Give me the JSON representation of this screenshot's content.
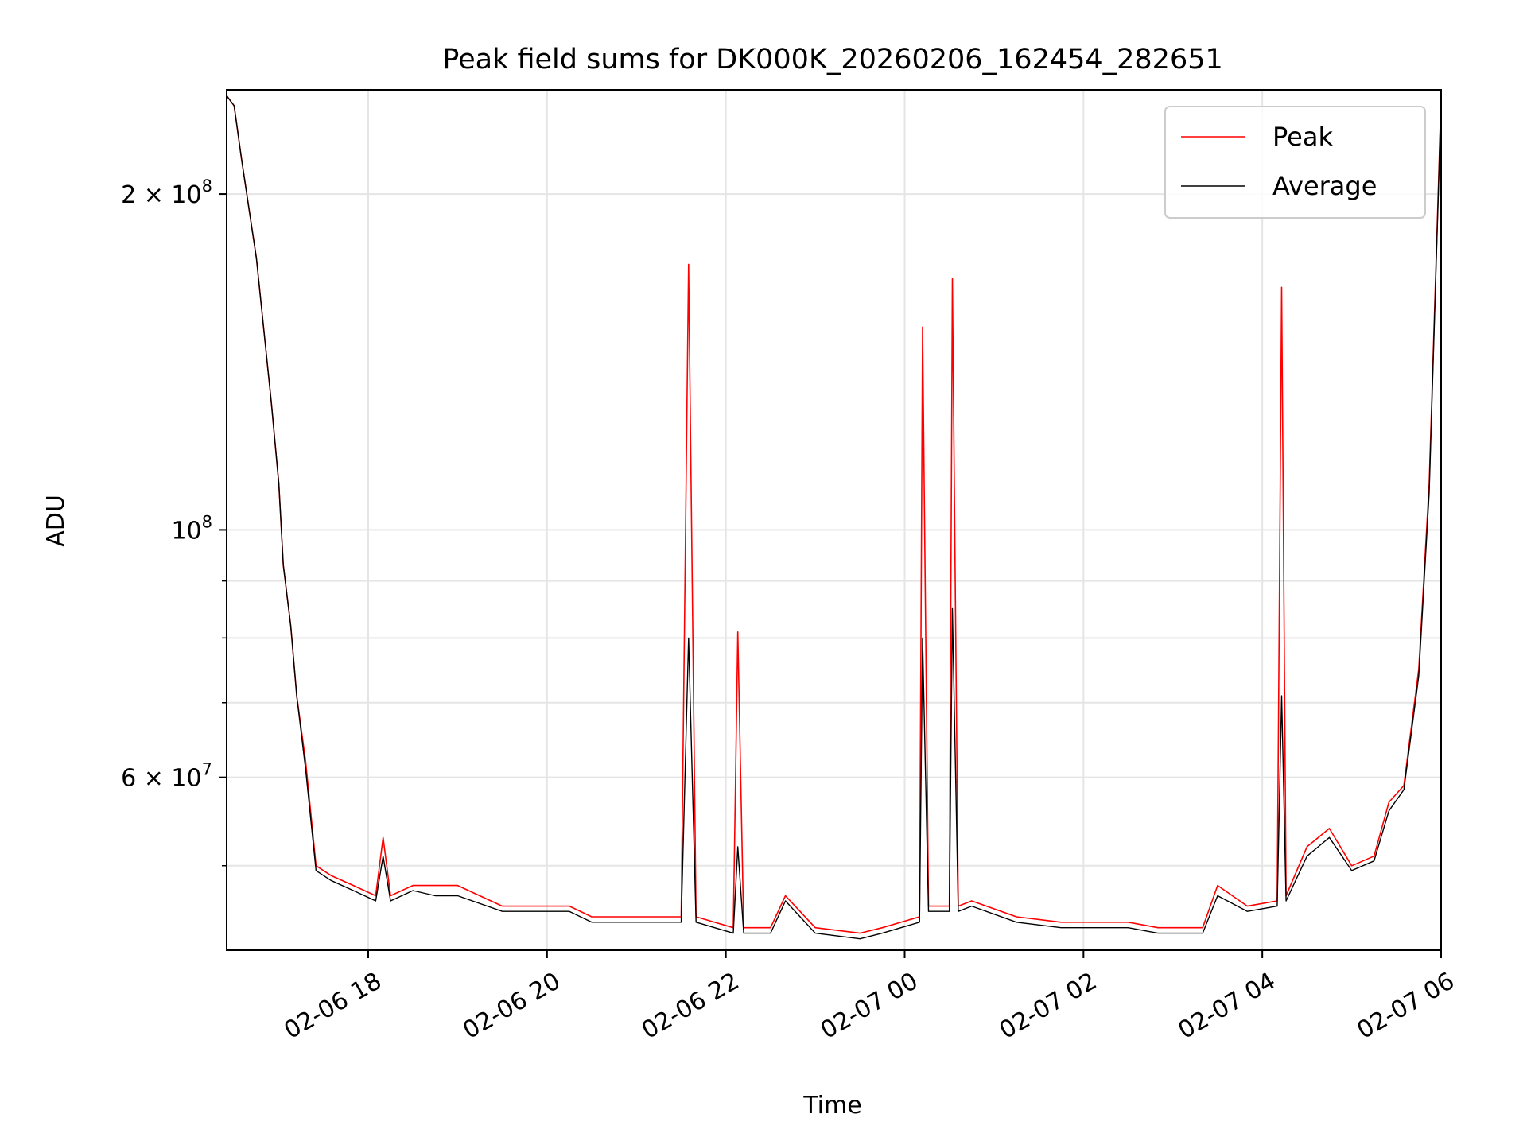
{
  "chart_data": {
    "type": "line",
    "title": "Peak field sums for DK000K_20260206_162454_282651",
    "xlabel": "Time",
    "ylabel": "ADU",
    "yscale": "log",
    "grid": true,
    "legend_position": "top-right",
    "xlim": [
      "2026-02-06 16:25",
      "2026-02-07 06:00"
    ],
    "ylim": [
      42000000,
      248000000
    ],
    "x_ticks": [
      {
        "t": "2026-02-06 18:00",
        "label": "02-06 18"
      },
      {
        "t": "2026-02-06 20:00",
        "label": "02-06 20"
      },
      {
        "t": "2026-02-06 22:00",
        "label": "02-06 22"
      },
      {
        "t": "2026-02-07 00:00",
        "label": "02-07 00"
      },
      {
        "t": "2026-02-07 02:00",
        "label": "02-07 02"
      },
      {
        "t": "2026-02-07 04:00",
        "label": "02-07 04"
      },
      {
        "t": "2026-02-07 06:00",
        "label": "02-07 06"
      }
    ],
    "y_major_ticks": [
      {
        "value": 60000000,
        "base": "6",
        "exp": "7"
      },
      {
        "value": 100000000,
        "base": "",
        "exp": "8"
      },
      {
        "value": 200000000,
        "base": "2",
        "exp": "8"
      }
    ],
    "y_minor_ticks": [
      50000000,
      70000000,
      80000000,
      90000000
    ],
    "series": [
      {
        "name": "Peak",
        "color": "#ff0000",
        "x": [
          "2026-02-06 16:25",
          "2026-02-06 16:30",
          "2026-02-06 16:35",
          "2026-02-06 16:45",
          "2026-02-06 16:55",
          "2026-02-06 17:00",
          "2026-02-06 17:03",
          "2026-02-06 17:08",
          "2026-02-06 17:12",
          "2026-02-06 17:18",
          "2026-02-06 17:25",
          "2026-02-06 17:35",
          "2026-02-06 17:50",
          "2026-02-06 18:05",
          "2026-02-06 18:10",
          "2026-02-06 18:15",
          "2026-02-06 18:30",
          "2026-02-06 18:45",
          "2026-02-06 19:00",
          "2026-02-06 19:30",
          "2026-02-06 19:50",
          "2026-02-06 20:15",
          "2026-02-06 20:30",
          "2026-02-06 21:00",
          "2026-02-06 21:30",
          "2026-02-06 21:35",
          "2026-02-06 21:40",
          "2026-02-06 22:05",
          "2026-02-06 22:08",
          "2026-02-06 22:12",
          "2026-02-06 22:30",
          "2026-02-06 22:40",
          "2026-02-06 23:00",
          "2026-02-06 23:30",
          "2026-02-06 23:45",
          "2026-02-07 00:10",
          "2026-02-07 00:12",
          "2026-02-07 00:16",
          "2026-02-07 00:30",
          "2026-02-07 00:32",
          "2026-02-07 00:36",
          "2026-02-07 00:45",
          "2026-02-07 01:15",
          "2026-02-07 01:45",
          "2026-02-07 02:30",
          "2026-02-07 02:50",
          "2026-02-07 03:20",
          "2026-02-07 03:30",
          "2026-02-07 03:50",
          "2026-02-07 04:10",
          "2026-02-07 04:13",
          "2026-02-07 04:16",
          "2026-02-07 04:30",
          "2026-02-07 04:45",
          "2026-02-07 05:00",
          "2026-02-07 05:15",
          "2026-02-07 05:25",
          "2026-02-07 05:35",
          "2026-02-07 05:45",
          "2026-02-07 05:52",
          "2026-02-07 05:58",
          "2026-02-07 06:00"
        ],
        "y": [
          245000000,
          240000000,
          215000000,
          175000000,
          130000000,
          110000000,
          93000000,
          82000000,
          71000000,
          62000000,
          50000000,
          49000000,
          48000000,
          47000000,
          53000000,
          47000000,
          48000000,
          48000000,
          48000000,
          46000000,
          46000000,
          46000000,
          45000000,
          45000000,
          45000000,
          173000000,
          45000000,
          44000000,
          81000000,
          44000000,
          44000000,
          47000000,
          44000000,
          43500000,
          44000000,
          45000000,
          152000000,
          46000000,
          46000000,
          168000000,
          46000000,
          46500000,
          45000000,
          44500000,
          44500000,
          44000000,
          44000000,
          48000000,
          46000000,
          46500000,
          165000000,
          47000000,
          52000000,
          54000000,
          50000000,
          51000000,
          57000000,
          59000000,
          75000000,
          110000000,
          200000000,
          245000000
        ]
      },
      {
        "name": "Average",
        "color": "#000000",
        "x": [
          "2026-02-06 16:25",
          "2026-02-06 16:30",
          "2026-02-06 16:35",
          "2026-02-06 16:45",
          "2026-02-06 16:55",
          "2026-02-06 17:00",
          "2026-02-06 17:03",
          "2026-02-06 17:08",
          "2026-02-06 17:12",
          "2026-02-06 17:18",
          "2026-02-06 17:25",
          "2026-02-06 17:35",
          "2026-02-06 17:50",
          "2026-02-06 18:05",
          "2026-02-06 18:10",
          "2026-02-06 18:15",
          "2026-02-06 18:30",
          "2026-02-06 18:45",
          "2026-02-06 19:00",
          "2026-02-06 19:30",
          "2026-02-06 19:50",
          "2026-02-06 20:15",
          "2026-02-06 20:30",
          "2026-02-06 21:00",
          "2026-02-06 21:30",
          "2026-02-06 21:35",
          "2026-02-06 21:40",
          "2026-02-06 22:05",
          "2026-02-06 22:08",
          "2026-02-06 22:12",
          "2026-02-06 22:30",
          "2026-02-06 22:40",
          "2026-02-06 23:00",
          "2026-02-06 23:30",
          "2026-02-06 23:45",
          "2026-02-07 00:10",
          "2026-02-07 00:12",
          "2026-02-07 00:16",
          "2026-02-07 00:30",
          "2026-02-07 00:32",
          "2026-02-07 00:36",
          "2026-02-07 00:45",
          "2026-02-07 01:15",
          "2026-02-07 01:45",
          "2026-02-07 02:30",
          "2026-02-07 02:50",
          "2026-02-07 03:20",
          "2026-02-07 03:30",
          "2026-02-07 03:50",
          "2026-02-07 04:10",
          "2026-02-07 04:13",
          "2026-02-07 04:16",
          "2026-02-07 04:30",
          "2026-02-07 04:45",
          "2026-02-07 05:00",
          "2026-02-07 05:15",
          "2026-02-07 05:25",
          "2026-02-07 05:35",
          "2026-02-07 05:45",
          "2026-02-07 05:52",
          "2026-02-07 05:58",
          "2026-02-07 06:00"
        ],
        "y": [
          245000000,
          240000000,
          215000000,
          175000000,
          130000000,
          110000000,
          93000000,
          82000000,
          71000000,
          61000000,
          49500000,
          48500000,
          47500000,
          46500000,
          51000000,
          46500000,
          47500000,
          47000000,
          47000000,
          45500000,
          45500000,
          45500000,
          44500000,
          44500000,
          44500000,
          80000000,
          44500000,
          43500000,
          52000000,
          43500000,
          43500000,
          46500000,
          43500000,
          43000000,
          43500000,
          44500000,
          80000000,
          45500000,
          45500000,
          85000000,
          45500000,
          46000000,
          44500000,
          44000000,
          44000000,
          43500000,
          43500000,
          47000000,
          45500000,
          46000000,
          71000000,
          46500000,
          51000000,
          53000000,
          49500000,
          50500000,
          56000000,
          58500000,
          74000000,
          108000000,
          198000000,
          245000000
        ]
      }
    ]
  }
}
